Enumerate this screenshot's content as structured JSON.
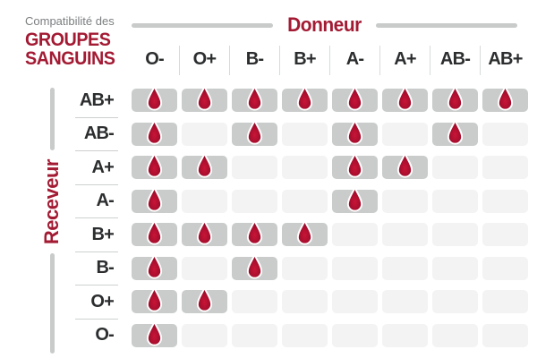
{
  "title": {
    "subtitle": "Compatibilité des",
    "line1": "GROUPES",
    "line2": "SANGUINS"
  },
  "axes": {
    "donor": "Donneur",
    "receiver": "Receveur"
  },
  "icons": {
    "compatible_marker": "blood-drop-icon"
  },
  "colors": {
    "accent_red": "#a31a33",
    "drop_red_center": "#c81537",
    "drop_red_edge": "#8c0a26",
    "cell_filled": "#c9cccb",
    "cell_empty": "#f2f3f2",
    "bar_gray": "#c8cbca",
    "text_dark": "#2b2d2e",
    "text_gray": "#7b7e80"
  },
  "chart_data": {
    "type": "heatmap",
    "title": "Compatibilité des GROUPES SANGUINS",
    "xlabel": "Donneur",
    "ylabel": "Receveur",
    "x_categories": [
      "O-",
      "O+",
      "B-",
      "B+",
      "A-",
      "A+",
      "AB-",
      "AB+"
    ],
    "y_categories": [
      "AB+",
      "AB-",
      "A+",
      "A-",
      "B+",
      "B-",
      "O+",
      "O-"
    ],
    "values": [
      [
        1,
        1,
        1,
        1,
        1,
        1,
        1,
        1
      ],
      [
        1,
        0,
        1,
        0,
        1,
        0,
        1,
        0
      ],
      [
        1,
        1,
        0,
        0,
        1,
        1,
        0,
        0
      ],
      [
        1,
        0,
        0,
        0,
        1,
        0,
        0,
        0
      ],
      [
        1,
        1,
        1,
        1,
        0,
        0,
        0,
        0
      ],
      [
        1,
        0,
        1,
        0,
        0,
        0,
        0,
        0
      ],
      [
        1,
        1,
        0,
        0,
        0,
        0,
        0,
        0
      ],
      [
        1,
        0,
        0,
        0,
        0,
        0,
        0,
        0
      ]
    ],
    "marker": "blood drop = compatible",
    "grid": "cells with rounded corners, gray = compatible, light gray = not compatible",
    "legend_position": "none"
  }
}
